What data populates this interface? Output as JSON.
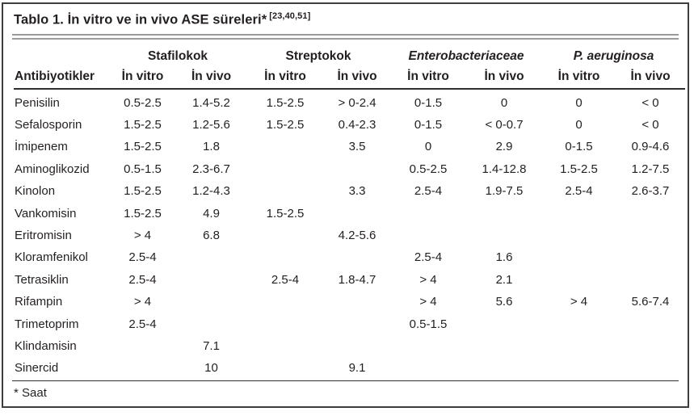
{
  "table": {
    "title": "Tablo 1. İn vitro ve in vivo ASE süreleri*",
    "citation": "[23,40,51]",
    "row_header": "Antibiyotikler",
    "groups": [
      {
        "label": "Stafilokok",
        "italic": false
      },
      {
        "label": "Streptokok",
        "italic": false
      },
      {
        "label": "Enterobacteriaceae",
        "italic": true
      },
      {
        "label": "P. aeruginosa",
        "italic": true
      }
    ],
    "subheaders": {
      "in_vitro": "İn vitro",
      "in_vivo": "İn vivo"
    },
    "rows": [
      {
        "name": "Penisilin",
        "values": [
          "0.5-2.5",
          "1.4-5.2",
          "1.5-2.5",
          "> 0-2.4",
          "0-1.5",
          "0",
          "0",
          "< 0"
        ]
      },
      {
        "name": "Sefalosporin",
        "values": [
          "1.5-2.5",
          "1.2-5.6",
          "1.5-2.5",
          "0.4-2.3",
          "0-1.5",
          "< 0-0.7",
          "0",
          "< 0"
        ]
      },
      {
        "name": "İmipenem",
        "values": [
          "1.5-2.5",
          "1.8",
          "",
          "3.5",
          "0",
          "2.9",
          "0-1.5",
          "0.9-4.6"
        ]
      },
      {
        "name": "Aminoglikozid",
        "values": [
          "0.5-1.5",
          "2.3-6.7",
          "",
          "",
          "0.5-2.5",
          "1.4-12.8",
          "1.5-2.5",
          "1.2-7.5"
        ]
      },
      {
        "name": "Kinolon",
        "values": [
          "1.5-2.5",
          "1.2-4.3",
          "",
          "3.3",
          "2.5-4",
          "1.9-7.5",
          "2.5-4",
          "2.6-3.7"
        ]
      },
      {
        "name": "Vankomisin",
        "values": [
          "1.5-2.5",
          "4.9",
          "1.5-2.5",
          "",
          "",
          "",
          "",
          ""
        ]
      },
      {
        "name": "Eritromisin",
        "values": [
          "> 4",
          "6.8",
          "",
          "4.2-5.6",
          "",
          "",
          "",
          ""
        ]
      },
      {
        "name": "Kloramfenikol",
        "values": [
          "2.5-4",
          "",
          "",
          "",
          "2.5-4",
          "1.6",
          "",
          ""
        ]
      },
      {
        "name": "Tetrasiklin",
        "values": [
          "2.5-4",
          "",
          "2.5-4",
          "1.8-4.7",
          "> 4",
          "2.1",
          "",
          ""
        ]
      },
      {
        "name": "Rifampin",
        "values": [
          "> 4",
          "",
          "",
          "",
          "> 4",
          "5.6",
          "> 4",
          "5.6-7.4"
        ]
      },
      {
        "name": "Trimetoprim",
        "values": [
          "2.5-4",
          "",
          "",
          "",
          "0.5-1.5",
          "",
          "",
          ""
        ]
      },
      {
        "name": "Klindamisin",
        "values": [
          "",
          "7.1",
          "",
          "",
          "",
          "",
          "",
          ""
        ]
      },
      {
        "name": "Sinercid",
        "values": [
          "",
          "10",
          "",
          "9.1",
          "",
          "",
          "",
          ""
        ]
      }
    ],
    "footnote": "* Saat"
  },
  "colors": {
    "text": "#231f20",
    "frame_border": "#3d3d3d",
    "double_rule": "#9b9b9b",
    "header_rule": "#2e2e2e",
    "background": "#ffffff"
  }
}
